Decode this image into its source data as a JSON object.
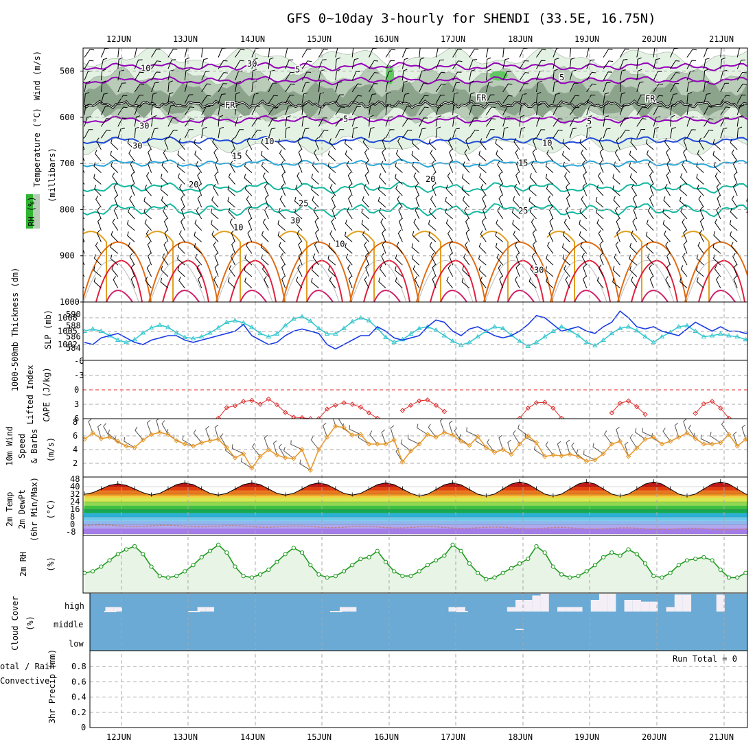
{
  "title": "GFS 0~10day 3-hourly for SHENDI (33.5E, 16.75N)",
  "dates": [
    "12JUN",
    "13JUN",
    "14JUN",
    "15JUN",
    "16JUN",
    "17JUN",
    "18JUN",
    "19JUN",
    "20JUN",
    "21JUN"
  ],
  "colors": {
    "purple": "#9400b8",
    "blue": "#1f49d8",
    "cyan": "#2aa6d8",
    "teal": "#14b8a0",
    "orange": "#e2a020",
    "dorange": "#e06a10",
    "red": "#e0203c",
    "rhpale": "#e4f2e4",
    "rhmid": "#b8ccb8",
    "rhdark": "#8ca48c",
    "rhgreen": "#60c860",
    "slp": "#1a3ce8",
    "thick": "#38c8d0",
    "li": "#e02828",
    "cape": "#c040c0",
    "wind": "#e69a30",
    "rh2m": "#1e9a1e",
    "rh2mfill": "#e8f4e6",
    "cloud": "#6aaad4",
    "cloudwhite": "#f4eef6",
    "dewpt": "#c08080",
    "temp": "#000000",
    "precip": "#20a020"
  },
  "panels": {
    "upper": {
      "labels": {
        "wind": "Wind (m/s)",
        "temperature": "Temperature (°C)",
        "rh": "RH (%)",
        "units": "(millibars)"
      },
      "yticks": [
        500,
        600,
        700,
        800,
        900,
        1000
      ],
      "contour_labels": {
        "purple": "5",
        "blue": "10",
        "cyan": "15",
        "teal1": "20",
        "teal2": "25",
        "orange": "30",
        "fr": "FR",
        "rh10": "10",
        "rh30": "30"
      }
    },
    "slp": {
      "labels": {
        "thickness": "1000-500mb Thickness (dm)",
        "slp": "SLP (mb)"
      },
      "left_ticks": [
        590,
        588,
        586,
        584
      ],
      "right_ticks": [
        1008,
        1005,
        1002
      ]
    },
    "li": {
      "labels": {
        "li": "Lifted Index",
        "cape": "CAPE (J/kg)"
      },
      "ticks": [
        "-6",
        "-3",
        "0",
        "3",
        "6"
      ]
    },
    "wind10m": {
      "labels": {
        "title": "10m Wind",
        "speed": "Speed",
        "barbs": "& Barbs",
        "units": "(m/s)"
      },
      "ticks": [
        8,
        6,
        4,
        2
      ]
    },
    "temp2m": {
      "labels": {
        "temp": "2m Temp",
        "dew": "2m DewPt",
        "minmax": "(6hr Min/Max)",
        "units": "(°C)"
      },
      "ticks": [
        48,
        40,
        32,
        24,
        16,
        8,
        0,
        -8
      ]
    },
    "rh2m": {
      "labels": {
        "rh": "2m RH",
        "units": "(%)"
      }
    },
    "cloud": {
      "labels": {
        "title": "Cloud Cover",
        "units": "(%)"
      },
      "levels": [
        "high",
        "middle",
        "low"
      ]
    },
    "precip": {
      "labels": {
        "a": "otal / Rain",
        "b": "Convective",
        "c": "3hr Precip (mm)"
      },
      "ticks": [
        "0.8",
        "0.6",
        "0.4",
        "0.2",
        "0"
      ],
      "run_total": "Run Total = 0"
    }
  },
  "chart_data": [
    {
      "type": "line",
      "panel": "1000-500mb thickness & SLP",
      "x_unit": "3-hourly steps from 11JUN12Z",
      "series": [
        {
          "name": "SLP (mb)",
          "values": [
            1002.5,
            1002,
            1003.5,
            1004,
            1004.5,
            1003.5,
            1002.5,
            1002,
            1003,
            1003.5,
            1004,
            1004,
            1003,
            1002.5,
            1003,
            1003.5,
            1004,
            1004.5,
            1005,
            1006.5,
            1004,
            1003,
            1002,
            1002.5,
            1004,
            1005,
            1005.5,
            1005,
            1004.5,
            1002,
            1001,
            1002,
            1003,
            1004,
            1004,
            1006,
            1005,
            1003.5,
            1003,
            1003.5,
            1004,
            1006,
            1007.5,
            1007,
            1005,
            1004,
            1005.5,
            1006,
            1005,
            1004,
            1003.5,
            1004,
            1005,
            1006.5,
            1008.5,
            1008,
            1006.5,
            1005,
            1005.5,
            1006,
            1005,
            1004.5,
            1006,
            1007,
            1009.5,
            1008,
            1006,
            1005.5,
            1006,
            1005,
            1004.5,
            1004,
            1005.5,
            1007,
            1006,
            1005,
            1006,
            1005,
            1005,
            1004.5,
            1005,
            1006,
            1008
          ]
        },
        {
          "name": "1000-500mb Thickness (dm)",
          "values": [
            587,
            587.4,
            587,
            586.2,
            585.4,
            585,
            585.5,
            586.7,
            587.6,
            588.1,
            587.7,
            586.7,
            585.9,
            585.7,
            586,
            586.7,
            587.6,
            588.6,
            588.9,
            588.5,
            587.7,
            586.6,
            586,
            586.5,
            588,
            589.2,
            589.6,
            588.8,
            587.5,
            586.5,
            586.5,
            587.5,
            588.7,
            589.4,
            588.9,
            587.5,
            585.9,
            585,
            585.5,
            586.5,
            587.5,
            587.8,
            587.2,
            586.2,
            585.2,
            584.5,
            585,
            586,
            587,
            587.8,
            587.5,
            586.3,
            585.2,
            584.3,
            585,
            586,
            587,
            587.8,
            587.1,
            586.2,
            585,
            584.4,
            585.4,
            586.6,
            587.5,
            587.8,
            587.1,
            586,
            585,
            586,
            586.8,
            587.8,
            588,
            587,
            586,
            586.2,
            586.5,
            586.2,
            586,
            585.5,
            585,
            584.5,
            584
          ]
        }
      ]
    },
    {
      "type": "line",
      "panel": "Lifted Index & CAPE",
      "x_unit": "3-hourly steps",
      "series": [
        {
          "name": "Lifted Index",
          "segments": [
            [
              16,
              5.9
            ],
            [
              17,
              3.7
            ],
            [
              18,
              3.3
            ],
            [
              19,
              2.4
            ],
            [
              20,
              2.2
            ],
            [
              21,
              3
            ],
            [
              22,
              1.9
            ],
            [
              23,
              3.1
            ],
            [
              24,
              4.7
            ],
            [
              25,
              5.7
            ],
            [
              26,
              5.8
            ],
            [
              27,
              6
            ],
            [
              28,
              6
            ],
            [
              29,
              4
            ],
            [
              30,
              3.2
            ],
            [
              31,
              2.7
            ],
            [
              32,
              3
            ],
            [
              33,
              3.6
            ],
            [
              34,
              4.8
            ],
            [
              35,
              5.9
            ]
          ]
        },
        {
          "name": "Lifted Index (later)",
          "values_by_step": {
            "38": 4.3,
            "39": 3.2,
            "40": 2.3,
            "41": 2.1,
            "42": 3.2,
            "43": 4.5,
            "52": 5.9,
            "53": 3.8,
            "54": 2.7,
            "55": 2.6,
            "56": 3.8,
            "57": 5.9,
            "63": 4.8,
            "64": 2.8,
            "65": 2.3,
            "66": 3.5,
            "67": 5.1,
            "73": 4.9,
            "74": 2.9,
            "75": 2.4,
            "76": 3.8,
            "77": 5.9
          }
        }
      ]
    },
    {
      "type": "line",
      "panel": "10m Wind Speed (m/s)",
      "x_unit": "3-hourly steps",
      "series": [
        {
          "name": "10m Wind Speed",
          "values": [
            5.5,
            6.4,
            5.6,
            5.8,
            5.2,
            4.5,
            4.3,
            5.4,
            6.2,
            6.5,
            6.2,
            5.3,
            4.8,
            4.5,
            5,
            5.3,
            5.5,
            4.3,
            2.8,
            3.4,
            1.3,
            3,
            4,
            3.2,
            2.8,
            2.7,
            4,
            1,
            4,
            5.8,
            7.4,
            7.2,
            6.1,
            6.2,
            4.8,
            4.8,
            4.8,
            5.4,
            2.2,
            3.8,
            4.8,
            6.2,
            5.8,
            6.5,
            6.1,
            5.2,
            4.6,
            5.9,
            4.3,
            3.6,
            4,
            3.3,
            4.8,
            6,
            5,
            3,
            3.2,
            3.1,
            3.3,
            3,
            2.3,
            2.5,
            3.4,
            4.8,
            5.2,
            3,
            4.2,
            5.5,
            5.8,
            4.8,
            5.2,
            5.8,
            6.4,
            5.6,
            4.8,
            4.8,
            5,
            6.2,
            4.5,
            5.5,
            4.5,
            5.2,
            6.2
          ]
        }
      ]
    },
    {
      "type": "area",
      "panel": "2m Temp / 2m DewPt (°C)",
      "x_unit": "3-hourly steps",
      "series": [
        {
          "name": "2m Temp daily max",
          "values": [
            43,
            44,
            44,
            44,
            44,
            44,
            45,
            45,
            45,
            45
          ]
        },
        {
          "name": "2m Temp daily min",
          "values": [
            32,
            31,
            31,
            31,
            31,
            30,
            30,
            30,
            30,
            30
          ]
        },
        {
          "name": "2m DewPt",
          "approx": [
            -1,
            -1,
            -1,
            -1,
            -1,
            -1,
            -2,
            -3,
            -4,
            -5
          ]
        }
      ]
    },
    {
      "type": "line",
      "panel": "2m RH (%)",
      "x_unit": "3-hourly steps",
      "series": [
        {
          "name": "2m RH",
          "values": [
            10,
            10.5,
            12,
            14,
            16,
            17.5,
            18.5,
            16,
            12,
            9,
            8.5,
            9,
            10.5,
            12.5,
            15,
            17,
            19,
            16.5,
            12,
            9,
            8.5,
            9.5,
            11,
            13.5,
            16,
            18,
            16.5,
            12.5,
            9.5,
            8.5,
            9,
            10.5,
            12.5,
            14.5,
            15,
            17,
            13.5,
            10.5,
            9,
            9,
            10.5,
            12.5,
            14,
            15.5,
            19,
            17,
            13,
            10,
            8,
            8.5,
            10,
            11.5,
            13,
            14.5,
            18.5,
            16.5,
            12,
            9.5,
            8.5,
            9,
            10.5,
            12.5,
            15,
            16.5,
            15.5,
            17.5,
            16,
            13,
            9,
            8.5,
            10,
            12.5,
            14,
            14.5,
            15,
            14,
            11,
            8.5,
            8.5,
            10,
            12,
            14,
            15,
            15,
            14,
            12.5
          ]
        }
      ]
    },
    {
      "type": "bar",
      "panel": "Cloud Cover high (relative heights)",
      "x_unit": "3-hourly steps",
      "series": [
        {
          "name": "high cloud cover",
          "values": [
            0,
            0,
            0,
            0.1,
            0.1,
            0,
            0,
            0,
            0,
            0,
            0,
            0,
            0,
            0,
            0.1,
            0.1,
            0,
            0,
            0,
            0,
            0,
            0,
            0,
            0,
            0,
            0,
            0,
            0,
            0,
            0,
            0,
            0.1,
            0.1,
            0,
            0,
            0,
            0,
            0,
            0,
            0,
            0,
            0,
            0,
            0,
            0.1,
            0.1,
            0,
            0,
            0,
            0,
            0,
            0.1,
            0.5,
            0.5,
            0.75,
            0.85,
            0,
            0.1,
            0.1,
            0.1,
            0,
            0.5,
            0.85,
            0.85,
            0,
            0.5,
            0.5,
            0.4,
            0.4,
            0,
            0.1,
            0.8,
            0.8,
            0,
            0,
            0,
            0.8,
            0,
            0,
            0,
            0,
            0,
            0.1,
            0.1,
            0
          ]
        }
      ]
    },
    {
      "type": "bar",
      "panel": "3hr Precip (mm)",
      "ylim": [
        0,
        0.9
      ],
      "series": [
        {
          "name": "3hr Precip",
          "values": [
            0
          ]
        }
      ]
    }
  ]
}
